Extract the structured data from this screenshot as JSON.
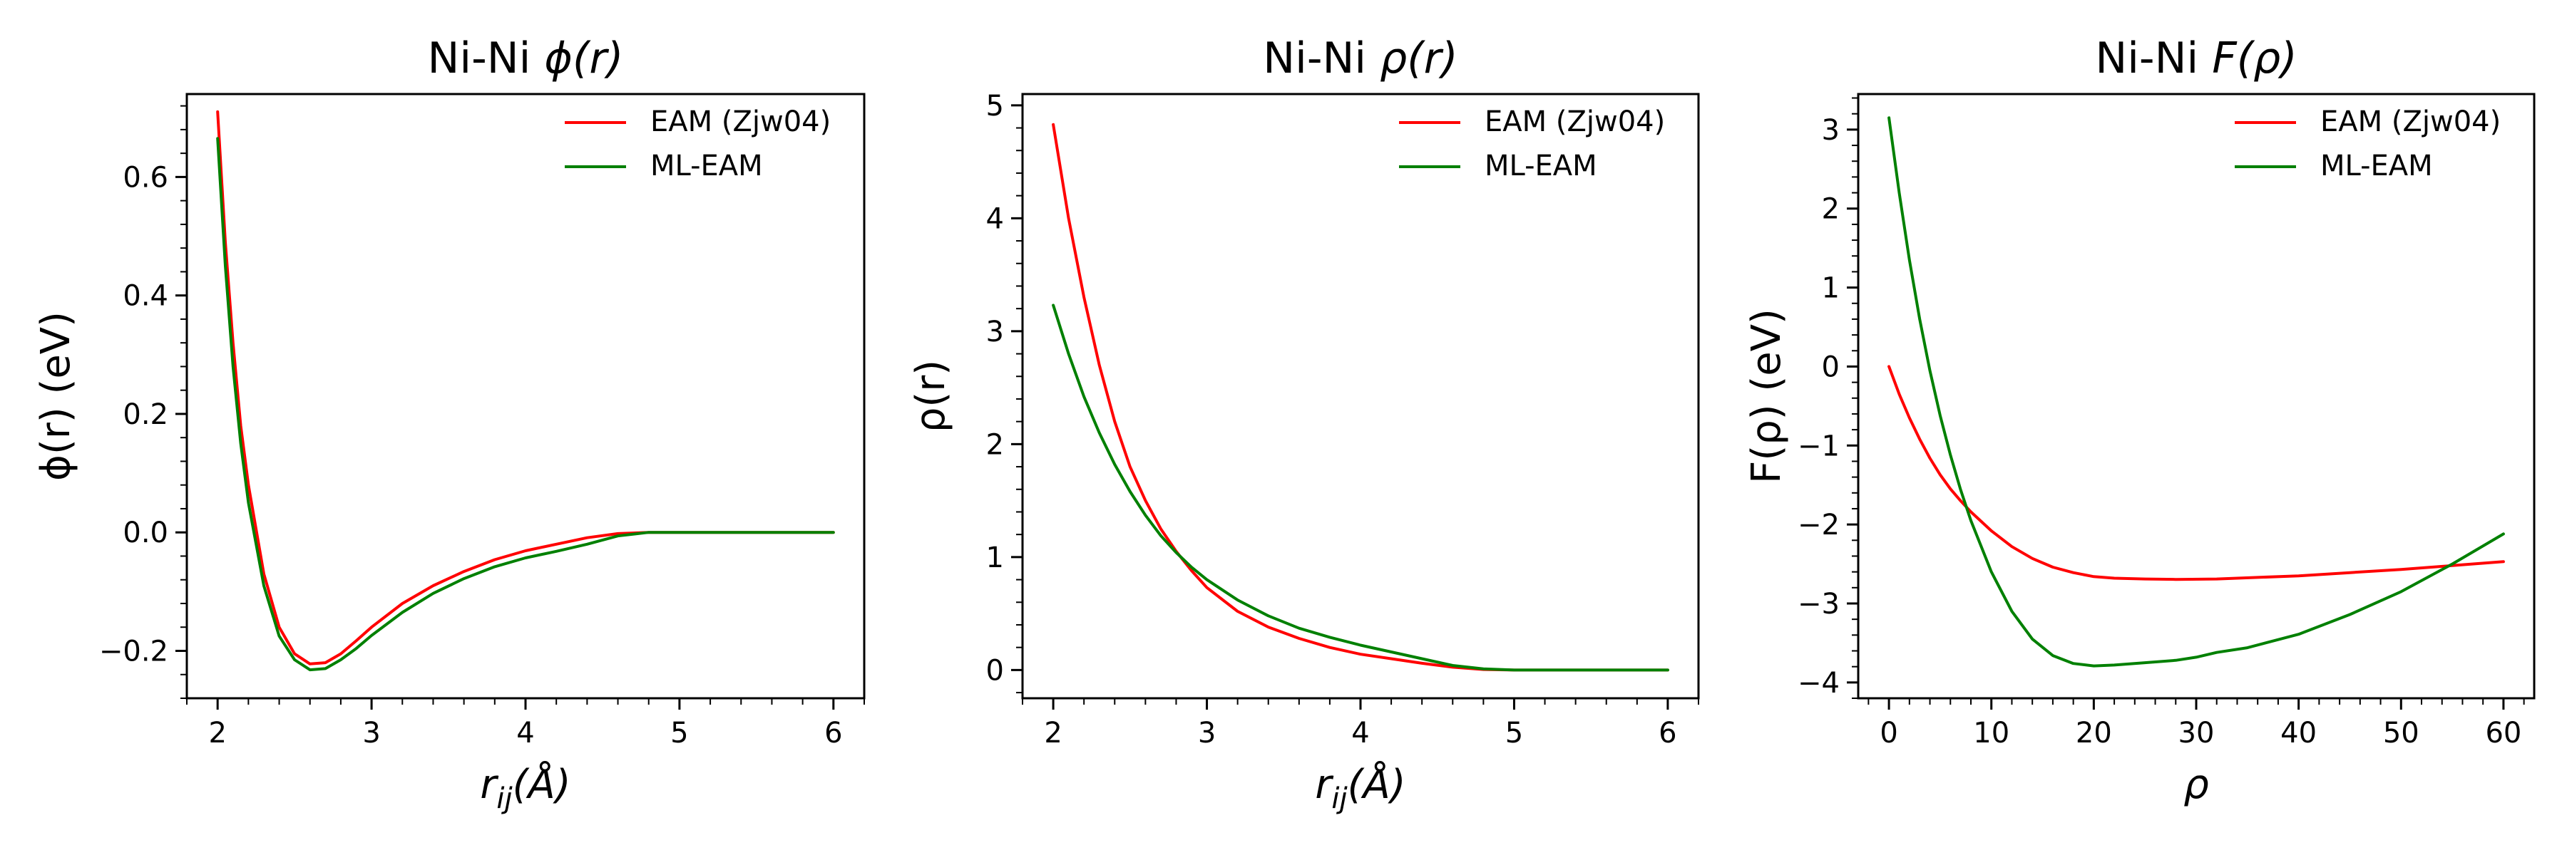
{
  "chart_data": [
    {
      "type": "line",
      "title_prefix": "Ni-Ni ",
      "title_symbol": "ϕ(r)",
      "ylabel": "ϕ(r) (eV)",
      "xlabel_main": "r",
      "xlabel_sub": "ij",
      "xlabel_suffix": "(Å)",
      "xlim": [
        1.8,
        6.2
      ],
      "ylim": [
        -0.28,
        0.74
      ],
      "xticks": [
        2,
        3,
        4,
        5,
        6
      ],
      "xtick_labels": [
        "2",
        "3",
        "4",
        "5",
        "6"
      ],
      "yticks": [
        -0.2,
        0.0,
        0.2,
        0.4,
        0.6
      ],
      "ytick_labels": [
        "−0.2",
        "0.0",
        "0.2",
        "0.4",
        "0.6"
      ],
      "legend": {
        "position": "top-right",
        "entries": [
          "EAM (Zjw04)",
          "ML-EAM"
        ]
      },
      "series": [
        {
          "name": "EAM (Zjw04)",
          "color": "#ff0000",
          "x": [
            2.0,
            2.05,
            2.1,
            2.15,
            2.2,
            2.3,
            2.4,
            2.5,
            2.6,
            2.7,
            2.8,
            2.9,
            3.0,
            3.2,
            3.4,
            3.6,
            3.8,
            4.0,
            4.2,
            4.4,
            4.6,
            4.8,
            5.0,
            5.5,
            6.0
          ],
          "y": [
            0.71,
            0.49,
            0.32,
            0.18,
            0.08,
            -0.07,
            -0.16,
            -0.205,
            -0.222,
            -0.22,
            -0.205,
            -0.183,
            -0.16,
            -0.12,
            -0.09,
            -0.066,
            -0.046,
            -0.031,
            -0.02,
            -0.009,
            -0.002,
            0.0,
            0.0,
            0.0,
            0.0
          ]
        },
        {
          "name": "ML-EAM",
          "color": "#008000",
          "x": [
            2.0,
            2.05,
            2.1,
            2.15,
            2.2,
            2.3,
            2.4,
            2.5,
            2.6,
            2.7,
            2.8,
            2.9,
            3.0,
            3.2,
            3.4,
            3.6,
            3.8,
            4.0,
            4.2,
            4.4,
            4.6,
            4.8,
            5.0,
            5.5,
            6.0
          ],
          "y": [
            0.665,
            0.45,
            0.28,
            0.15,
            0.05,
            -0.09,
            -0.175,
            -0.215,
            -0.232,
            -0.23,
            -0.215,
            -0.196,
            -0.174,
            -0.135,
            -0.103,
            -0.078,
            -0.058,
            -0.043,
            -0.032,
            -0.02,
            -0.006,
            0.0,
            0.0,
            0.0,
            0.0
          ]
        }
      ]
    },
    {
      "type": "line",
      "title_prefix": "Ni-Ni ",
      "title_symbol": "ρ(r)",
      "ylabel": "ρ(r)",
      "xlabel_main": "r",
      "xlabel_sub": "ij",
      "xlabel_suffix": "(Å)",
      "xlim": [
        1.8,
        6.2
      ],
      "ylim": [
        -0.25,
        5.1
      ],
      "xticks": [
        2,
        3,
        4,
        5,
        6
      ],
      "xtick_labels": [
        "2",
        "3",
        "4",
        "5",
        "6"
      ],
      "yticks": [
        0,
        1,
        2,
        3,
        4,
        5
      ],
      "ytick_labels": [
        "0",
        "1",
        "2",
        "3",
        "4",
        "5"
      ],
      "legend": {
        "position": "top-right",
        "entries": [
          "EAM (Zjw04)",
          "ML-EAM"
        ]
      },
      "series": [
        {
          "name": "EAM (Zjw04)",
          "color": "#ff0000",
          "x": [
            2.0,
            2.1,
            2.2,
            2.3,
            2.4,
            2.5,
            2.6,
            2.7,
            2.8,
            2.9,
            3.0,
            3.2,
            3.4,
            3.6,
            3.8,
            4.0,
            4.2,
            4.4,
            4.6,
            4.8,
            5.0,
            5.5,
            6.0
          ],
          "y": [
            4.83,
            4.0,
            3.3,
            2.7,
            2.2,
            1.8,
            1.5,
            1.25,
            1.05,
            0.88,
            0.73,
            0.52,
            0.38,
            0.28,
            0.2,
            0.14,
            0.1,
            0.06,
            0.025,
            0.005,
            0.0,
            0.0,
            0.0
          ]
        },
        {
          "name": "ML-EAM",
          "color": "#008000",
          "x": [
            2.0,
            2.1,
            2.2,
            2.3,
            2.4,
            2.5,
            2.6,
            2.7,
            2.8,
            2.9,
            3.0,
            3.2,
            3.4,
            3.6,
            3.8,
            4.0,
            4.2,
            4.4,
            4.6,
            4.8,
            5.0,
            5.5,
            6.0
          ],
          "y": [
            3.23,
            2.8,
            2.42,
            2.1,
            1.82,
            1.58,
            1.37,
            1.19,
            1.04,
            0.91,
            0.8,
            0.62,
            0.48,
            0.37,
            0.29,
            0.22,
            0.16,
            0.1,
            0.04,
            0.01,
            0.0,
            0.0,
            0.0
          ]
        }
      ]
    },
    {
      "type": "line",
      "title_prefix": "Ni-Ni ",
      "title_symbol": "F(ρ)",
      "ylabel": "F(ρ) (eV)",
      "xlabel_main": "ρ",
      "xlabel_sub": "",
      "xlabel_suffix": "",
      "xlim": [
        -3,
        63
      ],
      "ylim": [
        -4.2,
        3.45
      ],
      "xticks": [
        0,
        10,
        20,
        30,
        40,
        50,
        60
      ],
      "xtick_labels": [
        "0",
        "10",
        "20",
        "30",
        "40",
        "50",
        "60"
      ],
      "yticks": [
        -4,
        -3,
        -2,
        -1,
        0,
        1,
        2,
        3
      ],
      "ytick_labels": [
        "−4",
        "−3",
        "−2",
        "−1",
        "0",
        "1",
        "2",
        "3"
      ],
      "legend": {
        "position": "top-right",
        "entries": [
          "EAM (Zjw04)",
          "ML-EAM"
        ]
      },
      "series": [
        {
          "name": "EAM (Zjw04)",
          "color": "#ff0000",
          "x": [
            0,
            1,
            2,
            3,
            4,
            5,
            6,
            7,
            8,
            10,
            12,
            14,
            16,
            18,
            20,
            22,
            25,
            28,
            32,
            36,
            40,
            45,
            50,
            55,
            60
          ],
          "y": [
            0.0,
            -0.35,
            -0.65,
            -0.92,
            -1.16,
            -1.37,
            -1.55,
            -1.7,
            -1.84,
            -2.08,
            -2.28,
            -2.43,
            -2.54,
            -2.61,
            -2.66,
            -2.68,
            -2.69,
            -2.695,
            -2.69,
            -2.67,
            -2.65,
            -2.61,
            -2.57,
            -2.52,
            -2.47
          ]
        },
        {
          "name": "ML-EAM",
          "color": "#008000",
          "x": [
            0,
            1,
            2,
            3,
            4,
            5,
            6,
            7,
            8,
            10,
            12,
            14,
            16,
            18,
            20,
            22,
            25,
            28,
            30,
            32,
            35,
            40,
            45,
            50,
            55,
            60
          ],
          "y": [
            3.15,
            2.2,
            1.35,
            0.6,
            -0.05,
            -0.62,
            -1.12,
            -1.56,
            -1.95,
            -2.6,
            -3.1,
            -3.45,
            -3.66,
            -3.76,
            -3.79,
            -3.78,
            -3.75,
            -3.72,
            -3.68,
            -3.62,
            -3.56,
            -3.39,
            -3.14,
            -2.85,
            -2.5,
            -2.12
          ]
        }
      ]
    }
  ]
}
